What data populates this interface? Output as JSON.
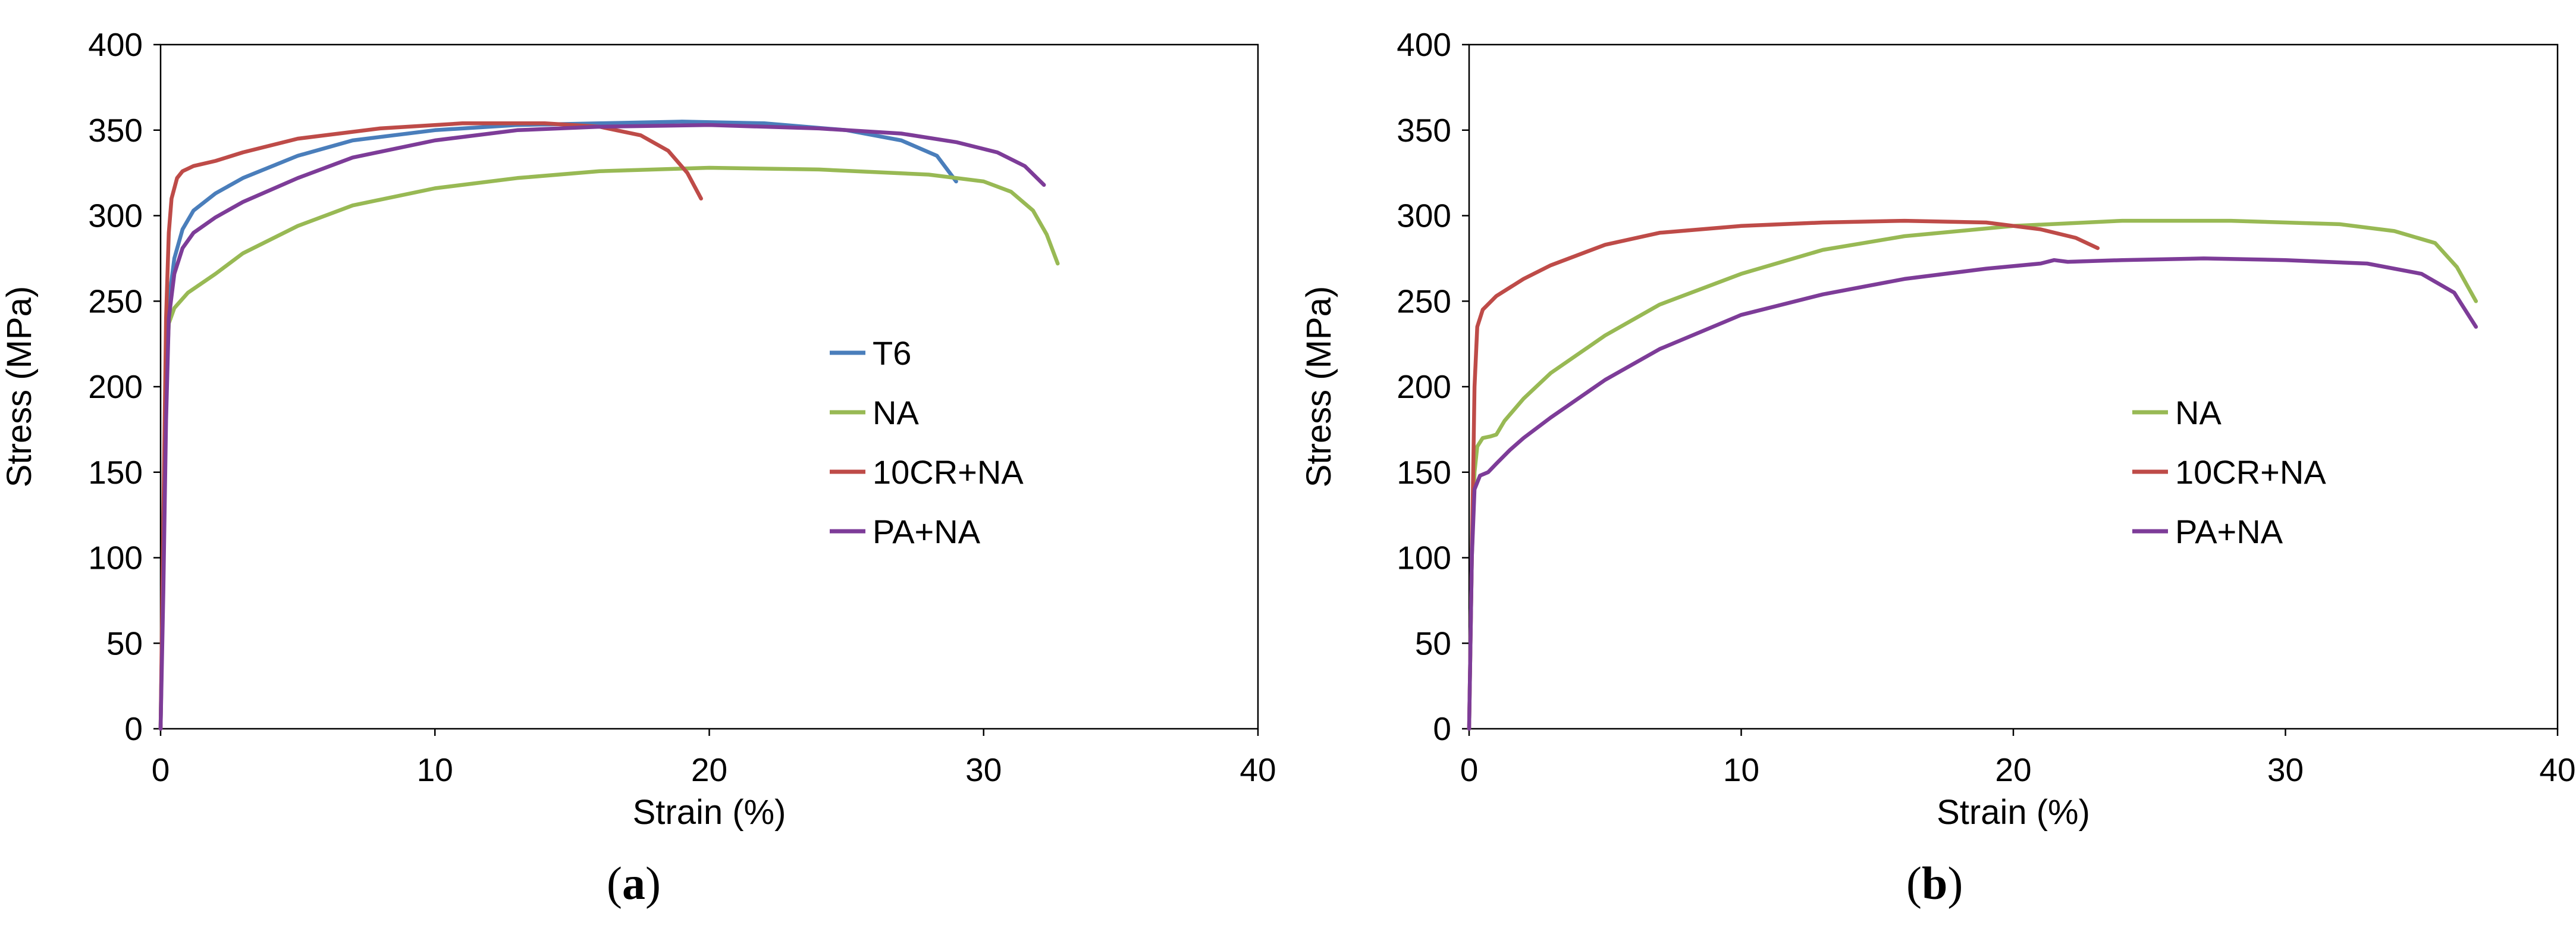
{
  "chart_data": [
    {
      "type": "line",
      "panel_label": "a",
      "xlabel": "Strain (%)",
      "ylabel": "Stress (MPa)",
      "xlim": [
        0,
        40
      ],
      "ylim": [
        0,
        400
      ],
      "xticks": [
        0,
        10,
        20,
        30,
        40
      ],
      "yticks": [
        0,
        50,
        100,
        150,
        200,
        250,
        300,
        350,
        400
      ],
      "legend": "center-right",
      "series": [
        {
          "name": "T6",
          "color": "#4a7ebb",
          "x": [
            0,
            0.1,
            0.2,
            0.3,
            0.5,
            0.8,
            1.2,
            2,
            3,
            5,
            7,
            10,
            13,
            16,
            19,
            22,
            25,
            27,
            28.3,
            29
          ],
          "y": [
            0,
            100,
            200,
            250,
            275,
            292,
            303,
            313,
            322,
            335,
            344,
            350,
            353,
            354,
            355,
            354,
            350,
            344,
            335,
            320
          ]
        },
        {
          "name": "NA",
          "color": "#98b954",
          "x": [
            0,
            0.1,
            0.2,
            0.3,
            0.5,
            1,
            2,
            3,
            5,
            7,
            10,
            13,
            16,
            20,
            24,
            28,
            30,
            31,
            31.8,
            32.3,
            32.7
          ],
          "y": [
            0,
            100,
            200,
            237,
            246,
            255,
            266,
            278,
            294,
            306,
            316,
            322,
            326,
            328,
            327,
            324,
            320,
            314,
            303,
            289,
            272
          ]
        },
        {
          "name": "10CR+NA",
          "color": "#be4b48",
          "x": [
            0,
            0.1,
            0.2,
            0.3,
            0.4,
            0.6,
            0.8,
            1.2,
            2,
            3,
            5,
            8,
            11,
            14,
            16,
            17.5,
            18.5,
            19.2,
            19.7
          ],
          "y": [
            0,
            120,
            240,
            290,
            310,
            322,
            326,
            329,
            332,
            337,
            345,
            351,
            354,
            354,
            352,
            347,
            338,
            325,
            310
          ]
        },
        {
          "name": "PA+NA",
          "color": "#7d3c98",
          "x": [
            0,
            0.1,
            0.2,
            0.3,
            0.5,
            0.8,
            1.2,
            2,
            3,
            5,
            7,
            10,
            13,
            16,
            20,
            24,
            27,
            29,
            30.5,
            31.5,
            32.2
          ],
          "y": [
            0,
            80,
            180,
            240,
            266,
            281,
            290,
            299,
            308,
            322,
            334,
            344,
            350,
            352,
            353,
            351,
            348,
            343,
            337,
            329,
            318
          ]
        }
      ]
    },
    {
      "type": "line",
      "panel_label": "b",
      "xlabel": "Strain (%)",
      "ylabel": "Stress (MPa)",
      "xlim": [
        0,
        40
      ],
      "ylim": [
        0,
        400
      ],
      "xticks": [
        0,
        10,
        20,
        30,
        40
      ],
      "yticks": [
        0,
        50,
        100,
        150,
        200,
        250,
        300,
        350,
        400
      ],
      "legend": "center-right",
      "series": [
        {
          "name": "NA",
          "color": "#98b954",
          "x": [
            0,
            0.1,
            0.2,
            0.3,
            0.5,
            0.8,
            1,
            1.3,
            2,
            3,
            5,
            7,
            10,
            13,
            16,
            20,
            24,
            28,
            32,
            34,
            35.5,
            36.3,
            37
          ],
          "y": [
            0,
            100,
            150,
            165,
            170,
            171,
            172,
            180,
            193,
            208,
            230,
            248,
            266,
            280,
            288,
            294,
            297,
            297,
            295,
            291,
            284,
            270,
            250
          ]
        },
        {
          "name": "10CR+NA",
          "color": "#be4b48",
          "x": [
            0,
            0.1,
            0.2,
            0.3,
            0.5,
            1,
            2,
            3,
            5,
            7,
            10,
            13,
            16,
            19,
            21,
            22.3,
            23.1
          ],
          "y": [
            0,
            100,
            200,
            235,
            245,
            253,
            263,
            271,
            283,
            290,
            294,
            296,
            297,
            296,
            292,
            287,
            281
          ]
        },
        {
          "name": "PA+NA",
          "color": "#7d3c98",
          "x": [
            0,
            0.1,
            0.2,
            0.4,
            0.7,
            1,
            1.5,
            2,
            3,
            5,
            7,
            10,
            13,
            16,
            19,
            21,
            21.5,
            22,
            24,
            27,
            30,
            33,
            35,
            36.2,
            37
          ],
          "y": [
            0,
            100,
            140,
            148,
            150,
            155,
            163,
            170,
            182,
            204,
            222,
            242,
            254,
            263,
            269,
            272,
            274,
            273,
            274,
            275,
            274,
            272,
            266,
            255,
            235
          ]
        }
      ]
    }
  ]
}
